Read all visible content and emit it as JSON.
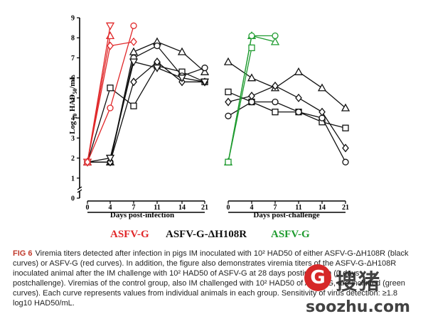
{
  "chart_data": {
    "type": "line",
    "ylabel": "Log 10 HAD50/mL",
    "ylim": [
      0,
      9
    ],
    "yticks": [
      "0",
      "1",
      "2",
      "3",
      "4",
      "5",
      "6",
      "7",
      "8",
      "9"
    ],
    "panels": [
      {
        "xlabel": "Days post-infection",
        "x": [
          "0",
          "4",
          "7",
          "11",
          "14",
          "21"
        ],
        "series": [
          {
            "group": "ASFV-G",
            "marker": "circle",
            "values": [
              1.8,
              4.5,
              8.6,
              null,
              null,
              null
            ]
          },
          {
            "group": "ASFV-G",
            "marker": "triangle-up",
            "values": [
              1.8,
              8.1,
              null,
              null,
              null,
              null
            ]
          },
          {
            "group": "ASFV-G",
            "marker": "triangle-down",
            "values": [
              1.8,
              8.6,
              null,
              null,
              null,
              null
            ]
          },
          {
            "group": "ASFV-G",
            "marker": "diamond",
            "values": [
              1.8,
              7.6,
              7.8,
              null,
              null,
              null
            ]
          },
          {
            "group": "ASFV-G-ΔH108R",
            "marker": "square",
            "values": [
              1.8,
              5.5,
              4.6,
              6.6,
              6.3,
              5.8
            ]
          },
          {
            "group": "ASFV-G-ΔH108R",
            "marker": "triangle-up",
            "values": [
              1.8,
              1.8,
              7.3,
              7.8,
              7.3,
              6.3
            ]
          },
          {
            "group": "ASFV-G-ΔH108R",
            "marker": "circle",
            "values": [
              1.8,
              1.8,
              7.0,
              7.6,
              6.1,
              6.5
            ]
          },
          {
            "group": "ASFV-G-ΔH108R",
            "marker": "diamond",
            "values": [
              1.8,
              1.8,
              5.8,
              6.8,
              5.8,
              5.8
            ]
          },
          {
            "group": "ASFV-G-ΔH108R",
            "marker": "triangle-down",
            "values": [
              1.8,
              2.0,
              6.8,
              6.5,
              6.0,
              5.8
            ]
          }
        ]
      },
      {
        "xlabel": "Days post-challenge",
        "x": [
          "0",
          "4",
          "7",
          "11",
          "14",
          "21"
        ],
        "series": [
          {
            "group": "ASFV-G-ΔH108R",
            "marker": "square",
            "values": [
              5.3,
              4.8,
              4.3,
              4.3,
              3.8,
              3.5
            ]
          },
          {
            "group": "ASFV-G-ΔH108R",
            "marker": "triangle-up",
            "values": [
              6.8,
              6.0,
              5.5,
              6.3,
              5.5,
              4.5
            ]
          },
          {
            "group": "ASFV-G-ΔH108R",
            "marker": "circle",
            "values": [
              4.1,
              4.8,
              4.8,
              4.3,
              4.0,
              1.8
            ]
          },
          {
            "group": "ASFV-G-ΔH108R",
            "marker": "diamond",
            "values": [
              4.8,
              5.1,
              5.6,
              5.0,
              4.3,
              2.5
            ]
          },
          {
            "group": "ASFV-G",
            "marker": "triangle-up",
            "values": [
              1.8,
              8.1,
              7.8,
              null,
              null,
              null
            ]
          },
          {
            "group": "ASFV-G",
            "marker": "circle",
            "values": [
              1.8,
              8.1,
              8.1,
              null,
              null,
              null
            ]
          },
          {
            "group": "ASFV-G",
            "marker": "square",
            "values": [
              1.8,
              7.5,
              null,
              null,
              null,
              null
            ]
          }
        ]
      }
    ],
    "legend": [
      {
        "label": "ASFV-G",
        "color": "#e0282a"
      },
      {
        "label": "ASFV-G-ΔH108R",
        "color": "#111111"
      },
      {
        "label": "ASFV-G",
        "color": "#1e9b2f"
      }
    ],
    "group_colors": {
      "ASFV-G": "#e0282a",
      "ASFV-G-ΔH108R": "#111111"
    },
    "challenge_control_color": "#1e9b2f"
  },
  "caption": {
    "label": "FIG 6",
    "text": "Viremia titers detected after infection in pigs IM inoculated with 10² HAD50 of either ASFV-G-ΔH108R (black curves) or ASFV-G (red curves). In addition, the figure also demonstrates viremia titers of the ASFV-G-ΔH108R inoculated animal after the IM challenge with 10² HAD50 of ASFV-G at 28 days postinfection (0 days postchallenge). Viremias of the control group, also IM challenged with 10² HAD50 of ASFV-G, are included (green curves). Each curve represents values from individual animals in each group. Sensitivity of virus detection: ≥1.8 log10 HAD50/mL."
  },
  "watermark": {
    "logo": "G",
    "text": "搜猪",
    "url": "soozhu.com"
  }
}
